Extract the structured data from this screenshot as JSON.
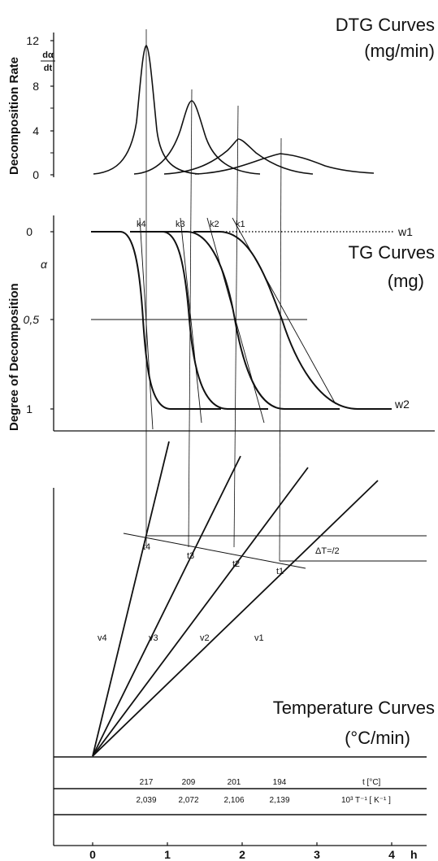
{
  "dtg": {
    "title_line1": "DTG Curves",
    "title_line2": "(mg/min)",
    "ylabel": "Decomposition Rate",
    "rate_symbol_top": "dα",
    "rate_symbol_bottom": "dt",
    "yticks": [
      "0",
      "4",
      "8",
      "12"
    ]
  },
  "tg": {
    "title_line1": "TG Curves",
    "title_line2": "(mg)",
    "ylabel": "Degree of Decomposition",
    "alpha": "α",
    "yticks": [
      "0",
      "0,5",
      "1"
    ],
    "w1": "w1",
    "w2": "w2",
    "k_labels": [
      "k4",
      "k3",
      "k2",
      "k1"
    ]
  },
  "temp": {
    "title_line1": "Temperature Curves",
    "title_line2": "(°C/min)",
    "v_labels": [
      "v4",
      "v3",
      "v2",
      "v1"
    ],
    "t_labels": [
      "t4",
      "t3",
      "t2",
      "t1"
    ],
    "delta_label": "ΔT=/2"
  },
  "table": {
    "temps": [
      "217",
      "209",
      "201",
      "194"
    ],
    "temp_unit": "t [°C]",
    "recips": [
      "2,039",
      "2,072",
      "2,106",
      "2,139"
    ],
    "recip_unit": "10³ T⁻¹ [ K⁻¹ ]"
  },
  "xaxis": {
    "ticks": [
      "0",
      "1",
      "2",
      "3",
      "4"
    ],
    "unit": "h"
  },
  "colors": {
    "ink": "#111111",
    "background": "#ffffff"
  }
}
